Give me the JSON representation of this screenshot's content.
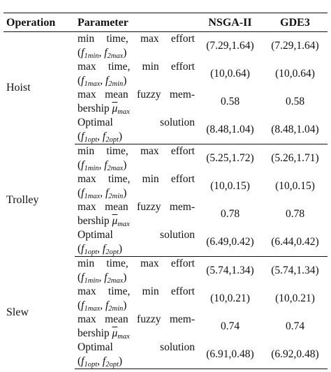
{
  "table": {
    "headers": [
      "Operation",
      "Parameter",
      "NSGA-II",
      "GDE3"
    ],
    "groups": [
      {
        "operation": "Hoist",
        "rows": [
          {
            "line1": "min time, max effort",
            "f1": "f",
            "f1_idx": "1",
            "f1_sub": "min",
            "f2": "f",
            "f2_idx": "2",
            "f2_sub": "max",
            "nsga": "(7.29,1.64)",
            "gde3": "(7.29,1.64)"
          },
          {
            "line1": "max time, min effort",
            "f1": "f",
            "f1_idx": "1",
            "f1_sub": "max",
            "f2": "f",
            "f2_idx": "2",
            "f2_sub": "min",
            "nsga": "(10,0.64)",
            "gde3": "(10,0.64)"
          },
          {
            "line1": "max mean fuzzy mem-",
            "line2": "bership",
            "mu": "μ",
            "mu_sub": "max",
            "nsga": "0.58",
            "gde3": "0.58"
          },
          {
            "line1": "Optimal solution",
            "f1": "f",
            "f1_idx": "1",
            "f1_sub": "opt",
            "f2": "f",
            "f2_idx": "2",
            "f2_sub": "opt",
            "nsga": "(8.48,1.04)",
            "gde3": "(8.48,1.04)"
          }
        ]
      },
      {
        "operation": "Trolley",
        "rows": [
          {
            "line1": "min time, max effort",
            "f1": "f",
            "f1_idx": "1",
            "f1_sub": "min",
            "f2": "f",
            "f2_idx": "2",
            "f2_sub": "max",
            "nsga": "(5.25,1.72)",
            "gde3": "(5.26,1.71)"
          },
          {
            "line1": "max time, min effort",
            "f1": "f",
            "f1_idx": "1",
            "f1_sub": "max",
            "f2": "f",
            "f2_idx": "2",
            "f2_sub": "min",
            "nsga": "(10,0.15)",
            "gde3": "(10,0.15)"
          },
          {
            "line1": "max mean fuzzy mem-",
            "line2": "bership",
            "mu": "μ",
            "mu_sub": "max",
            "nsga": "0.78",
            "gde3": "0.78"
          },
          {
            "line1": "Optimal solution",
            "f1": "f",
            "f1_idx": "1",
            "f1_sub": "opt",
            "f2": "f",
            "f2_idx": "2",
            "f2_sub": "opt",
            "nsga": "(6.49,0.42)",
            "gde3": "(6.44,0.42)"
          }
        ]
      },
      {
        "operation": "Slew",
        "rows": [
          {
            "line1": "min time, max effort",
            "f1": "f",
            "f1_idx": "1",
            "f1_sub": "min",
            "f2": "f",
            "f2_idx": "2",
            "f2_sub": "max",
            "nsga": "(5.74,1.34)",
            "gde3": "(5.74,1.34)"
          },
          {
            "line1": "max time, min effort",
            "f1": "f",
            "f1_idx": "1",
            "f1_sub": "max",
            "f2": "f",
            "f2_idx": "2",
            "f2_sub": "min",
            "nsga": "(10,0.21)",
            "gde3": "(10,0.21)"
          },
          {
            "line1": "max mean fuzzy mem-",
            "line2": "bership",
            "mu": "μ",
            "mu_sub": "max",
            "nsga": "0.74",
            "gde3": "0.74"
          },
          {
            "line1": "Optimal solution",
            "f1": "f",
            "f1_idx": "1",
            "f1_sub": "opt",
            "f2": "f",
            "f2_idx": "2",
            "f2_sub": "opt",
            "nsga": "(6.91,0.48)",
            "gde3": "(6.92,0.48)"
          }
        ]
      }
    ]
  }
}
